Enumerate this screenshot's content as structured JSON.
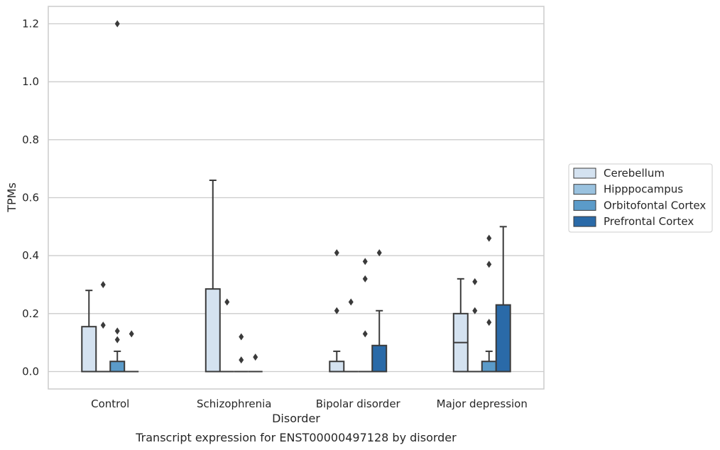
{
  "chart_data": {
    "type": "box",
    "title": "",
    "caption": "Transcript expression for ENST00000497128 by disorder",
    "xlabel": "Disorder",
    "ylabel": "TPMs",
    "ylim": [
      -0.06,
      1.26
    ],
    "yticks": [
      "0.0",
      "0.2",
      "0.4",
      "0.6",
      "0.8",
      "1.0",
      "1.2"
    ],
    "categories": [
      "Control",
      "Schizophrenia",
      "Bipolar disorder",
      "Major depression"
    ],
    "grid": true,
    "legend_position": "right",
    "series": [
      {
        "name": "Cerebellum",
        "color": "#d4e2f0",
        "boxes": [
          {
            "q1": 0,
            "median": 0,
            "q3": 0.155,
            "whisker_low": 0,
            "whisker_high": 0.28,
            "outliers": []
          },
          {
            "q1": 0,
            "median": 0,
            "q3": 0.285,
            "whisker_low": 0,
            "whisker_high": 0.66,
            "outliers": []
          },
          {
            "q1": 0,
            "median": 0,
            "q3": 0.035,
            "whisker_low": 0,
            "whisker_high": 0.07,
            "outliers": [
              0.21,
              0.41
            ]
          },
          {
            "q1": 0,
            "median": 0.1,
            "q3": 0.2,
            "whisker_low": 0,
            "whisker_high": 0.32,
            "outliers": []
          }
        ]
      },
      {
        "name": "Hipppocampus",
        "color": "#9ac2df",
        "boxes": [
          {
            "q1": 0,
            "median": 0,
            "q3": 0,
            "whisker_low": 0,
            "whisker_high": 0,
            "outliers": [
              0.16,
              0.3
            ]
          },
          {
            "q1": 0,
            "median": 0,
            "q3": 0,
            "whisker_low": 0,
            "whisker_high": 0,
            "outliers": [
              0.24
            ]
          },
          {
            "q1": 0,
            "median": 0,
            "q3": 0,
            "whisker_low": 0,
            "whisker_high": 0,
            "outliers": [
              0.24
            ]
          },
          {
            "q1": 0,
            "median": 0,
            "q3": 0,
            "whisker_low": 0,
            "whisker_high": 0,
            "outliers": [
              0.21,
              0.31
            ]
          }
        ]
      },
      {
        "name": "Orbitofontal Cortex",
        "color": "#5b9bc9",
        "boxes": [
          {
            "q1": 0,
            "median": 0,
            "q3": 0.035,
            "whisker_low": 0,
            "whisker_high": 0.07,
            "outliers": [
              0.11,
              0.14,
              1.2
            ]
          },
          {
            "q1": 0,
            "median": 0,
            "q3": 0,
            "whisker_low": 0,
            "whisker_high": 0,
            "outliers": [
              0.04,
              0.12
            ]
          },
          {
            "q1": 0,
            "median": 0,
            "q3": 0,
            "whisker_low": 0,
            "whisker_high": 0,
            "outliers": [
              0.13,
              0.32,
              0.38
            ]
          },
          {
            "q1": 0,
            "median": 0,
            "q3": 0.035,
            "whisker_low": 0,
            "whisker_high": 0.07,
            "outliers": [
              0.17,
              0.37,
              0.46
            ]
          }
        ]
      },
      {
        "name": "Prefrontal Cortex",
        "color": "#2a6aa8",
        "boxes": [
          {
            "q1": 0,
            "median": 0,
            "q3": 0,
            "whisker_low": 0,
            "whisker_high": 0,
            "outliers": [
              0.13
            ]
          },
          {
            "q1": 0,
            "median": 0,
            "q3": 0,
            "whisker_low": 0,
            "whisker_high": 0,
            "outliers": [
              0.05
            ]
          },
          {
            "q1": 0,
            "median": 0,
            "q3": 0.09,
            "whisker_low": 0,
            "whisker_high": 0.21,
            "outliers": [
              0.41
            ]
          },
          {
            "q1": 0,
            "median": 0,
            "q3": 0.23,
            "whisker_low": 0,
            "whisker_high": 0.5,
            "outliers": []
          }
        ]
      }
    ]
  }
}
